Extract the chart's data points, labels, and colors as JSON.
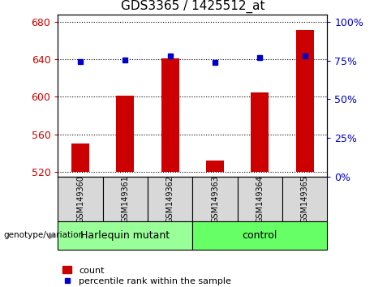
{
  "title": "GDS3365 / 1425512_at",
  "samples": [
    "GSM149360",
    "GSM149361",
    "GSM149362",
    "GSM149363",
    "GSM149364",
    "GSM149365"
  ],
  "counts": [
    550,
    601,
    641,
    532,
    605,
    671
  ],
  "percentiles": [
    74.5,
    75.5,
    78,
    74,
    77,
    78
  ],
  "ylim_left": [
    515,
    688
  ],
  "yticks_left": [
    520,
    560,
    600,
    640,
    680
  ],
  "ylim_right": [
    0,
    105
  ],
  "yticks_right": [
    0,
    25,
    50,
    75,
    100
  ],
  "bar_color": "#cc0000",
  "dot_color": "#0000cc",
  "bar_width": 0.4,
  "groups": [
    {
      "label": "Harlequin mutant",
      "color": "#99ff99",
      "start": 0,
      "end": 3
    },
    {
      "label": "control",
      "color": "#66ff66",
      "start": 3,
      "end": 6
    }
  ],
  "group_label": "genotype/variation",
  "legend_count_label": "count",
  "legend_pct_label": "percentile rank within the sample",
  "grid_color": "black",
  "label_bg_color": "#d8d8d8",
  "plot_bg": "white",
  "title_fontsize": 11,
  "tick_fontsize": 9,
  "sample_fontsize": 7,
  "group_fontsize": 9,
  "legend_fontsize": 8
}
